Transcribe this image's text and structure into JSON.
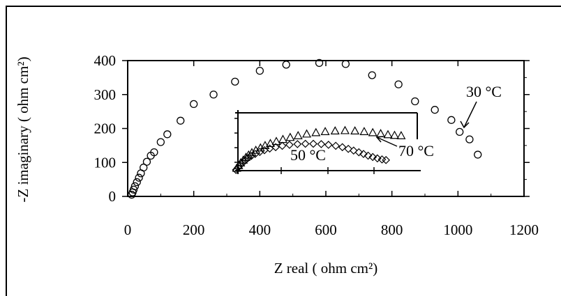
{
  "chart_data": [
    {
      "type": "scatter",
      "xlabel": "Z real ( ohm cm²)",
      "ylabel": "-Z imaginary ( ohm cm²)",
      "xlim": [
        0,
        1200
      ],
      "ylim": [
        0,
        400
      ],
      "xticks": [
        "0",
        "200",
        "400",
        "600",
        "800",
        "1000",
        "1200"
      ],
      "yticks": [
        "0",
        "100",
        "200",
        "300",
        "400"
      ],
      "series": [
        {
          "name": "30 °C",
          "marker": "circle",
          "points": [
            [
              12,
              5
            ],
            [
              15,
              12
            ],
            [
              18,
              20
            ],
            [
              22,
              30
            ],
            [
              28,
              42
            ],
            [
              34,
              55
            ],
            [
              40,
              68
            ],
            [
              48,
              85
            ],
            [
              58,
              102
            ],
            [
              70,
              120
            ],
            [
              80,
              130
            ],
            [
              100,
              160
            ],
            [
              120,
              183
            ],
            [
              160,
              223
            ],
            [
              200,
              272
            ],
            [
              260,
              300
            ],
            [
              325,
              338
            ],
            [
              400,
              370
            ],
            [
              480,
              388
            ],
            [
              580,
              393
            ],
            [
              660,
              390
            ],
            [
              740,
              357
            ],
            [
              820,
              330
            ],
            [
              870,
              280
            ],
            [
              930,
              255
            ],
            [
              980,
              225
            ],
            [
              1005,
              190
            ],
            [
              1035,
              168
            ],
            [
              1060,
              123
            ]
          ]
        }
      ],
      "annotations": [
        "30 °C",
        "50 °C",
        "70 °C"
      ]
    },
    {
      "type": "scatter",
      "inset": true,
      "series": [
        {
          "name": "50 °C",
          "marker": "triangle",
          "points": [
            [
              330,
              82
            ],
            [
              336,
              90
            ],
            [
              342,
              98
            ],
            [
              350,
              106
            ],
            [
              358,
              114
            ],
            [
              366,
              121
            ],
            [
              376,
              128
            ],
            [
              388,
              135
            ],
            [
              402,
              142
            ],
            [
              416,
              149
            ],
            [
              432,
              155
            ],
            [
              450,
              161
            ],
            [
              470,
              167
            ],
            [
              492,
              173
            ],
            [
              516,
              178
            ],
            [
              542,
              183
            ],
            [
              570,
              187
            ],
            [
              598,
              190
            ],
            [
              628,
              192
            ],
            [
              658,
              193
            ],
            [
              688,
              192
            ],
            [
              716,
              190
            ],
            [
              742,
              187
            ],
            [
              766,
              184
            ],
            [
              788,
              181
            ],
            [
              808,
              179
            ],
            [
              828,
              178
            ]
          ]
        },
        {
          "name": "70 °C",
          "marker": "diamond",
          "points": [
            [
              328,
              78
            ],
            [
              334,
              85
            ],
            [
              340,
              92
            ],
            [
              348,
              99
            ],
            [
              356,
              106
            ],
            [
              364,
              113
            ],
            [
              374,
              119
            ],
            [
              386,
              125
            ],
            [
              400,
              131
            ],
            [
              414,
              136
            ],
            [
              430,
              141
            ],
            [
              448,
              145
            ],
            [
              468,
              149
            ],
            [
              490,
              152
            ],
            [
              514,
              154
            ],
            [
              538,
              155
            ],
            [
              562,
              155
            ],
            [
              586,
              154
            ],
            [
              608,
              152
            ],
            [
              630,
              149
            ],
            [
              650,
              145
            ],
            [
              668,
              140
            ],
            [
              684,
              135
            ],
            [
              700,
              130
            ],
            [
              714,
              125
            ],
            [
              728,
              120
            ],
            [
              742,
              116
            ],
            [
              756,
              112
            ],
            [
              770,
              109
            ],
            [
              782,
              107
            ]
          ]
        }
      ]
    }
  ]
}
